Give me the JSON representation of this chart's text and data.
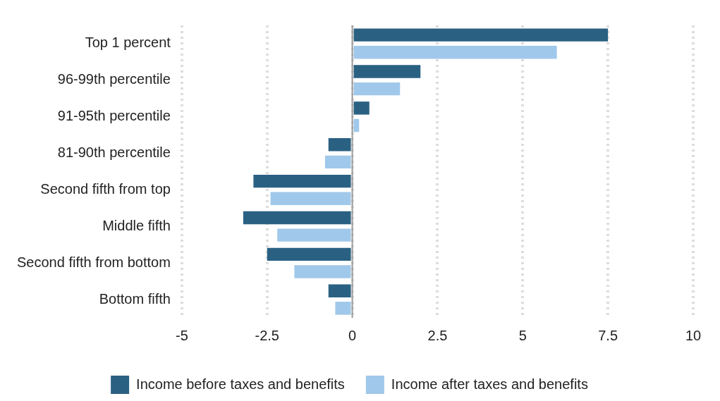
{
  "chart_data": {
    "type": "bar",
    "orientation": "horizontal",
    "categories": [
      "Top 1 percent",
      "96-99th percentile",
      "91-95th percentile",
      "81-90th percentile",
      "Second fifth from top",
      "Middle fifth",
      "Second fifth from bottom",
      "Bottom fifth"
    ],
    "series": [
      {
        "name": "Income before taxes and benefits",
        "color": "#2a6183",
        "values": [
          7.5,
          2.0,
          0.5,
          -0.7,
          -2.9,
          -3.2,
          -2.5,
          -0.7
        ]
      },
      {
        "name": "Income after taxes and benefits",
        "color": "#a0c8ea",
        "values": [
          6.0,
          1.4,
          0.2,
          -0.8,
          -2.4,
          -2.2,
          -1.7,
          -0.5
        ]
      }
    ],
    "xlim": [
      -5,
      10
    ],
    "xticks": [
      -5,
      -2.5,
      0,
      2.5,
      5,
      7.5,
      10
    ],
    "grid": "x",
    "legend": "bottom",
    "ref_lines": [
      {
        "axis": "x",
        "value": 0,
        "color": "#999999"
      }
    ]
  }
}
